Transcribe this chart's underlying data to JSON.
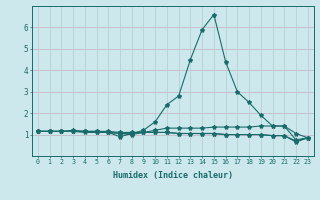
{
  "xlabel": "Humidex (Indice chaleur)",
  "bg_color": "#cce8ec",
  "grid_color_h": "#c8b8c8",
  "grid_color_v": "#b8d0d0",
  "line_color": "#1a6b6b",
  "x_min": -0.5,
  "x_max": 23.5,
  "y_min": 0.0,
  "y_max": 7.0,
  "x_ticks": [
    0,
    1,
    2,
    3,
    4,
    5,
    6,
    7,
    8,
    9,
    10,
    11,
    12,
    13,
    14,
    15,
    16,
    17,
    18,
    19,
    20,
    21,
    22,
    23
  ],
  "y_ticks": [
    1,
    2,
    3,
    4,
    5,
    6
  ],
  "lines": [
    [
      1.15,
      1.15,
      1.15,
      1.15,
      1.15,
      1.1,
      1.1,
      0.9,
      1.05,
      1.2,
      1.6,
      2.4,
      2.8,
      4.5,
      5.9,
      6.6,
      4.4,
      3.0,
      2.5,
      1.9,
      1.4,
      1.4,
      1.05,
      0.85
    ],
    [
      1.15,
      1.15,
      1.15,
      1.15,
      1.15,
      1.15,
      1.1,
      1.05,
      1.0,
      1.1,
      1.2,
      1.3,
      1.3,
      1.3,
      1.3,
      1.35,
      1.35,
      1.35,
      1.35,
      1.4,
      1.4,
      1.4,
      0.75,
      0.85
    ],
    [
      1.15,
      1.15,
      1.15,
      1.2,
      1.15,
      1.15,
      1.15,
      1.1,
      1.1,
      1.1,
      1.1,
      1.1,
      1.05,
      1.05,
      1.05,
      1.05,
      1.0,
      1.0,
      1.0,
      1.0,
      0.95,
      0.95,
      0.7,
      0.85
    ],
    [
      1.15,
      1.15,
      1.15,
      1.15,
      1.1,
      1.1,
      1.1,
      1.05,
      1.05,
      1.1,
      1.1,
      1.1,
      1.05,
      1.05,
      1.05,
      1.05,
      1.0,
      1.0,
      1.0,
      1.0,
      0.95,
      0.95,
      0.65,
      0.85
    ]
  ],
  "xlabel_fontsize": 6.0,
  "xtick_fontsize": 4.8,
  "ytick_fontsize": 5.5
}
